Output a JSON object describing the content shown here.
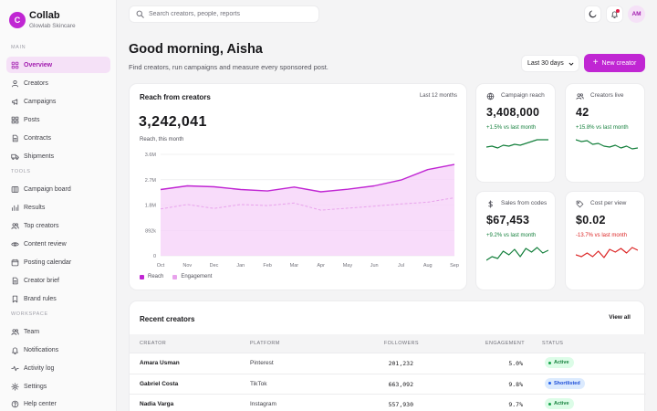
{
  "brand": {
    "initial": "C",
    "name": "Collab",
    "workspace": "Glowlab Skincare"
  },
  "search": {
    "placeholder": "Search creators, people, reports"
  },
  "user": {
    "initials": "AM"
  },
  "sidebar": {
    "sections": [
      {
        "label": "MAIN",
        "items": [
          {
            "label": "Overview",
            "icon": "grid-icon",
            "active": true
          },
          {
            "label": "Creators",
            "icon": "user-icon"
          },
          {
            "label": "Campaigns",
            "icon": "megaphone-icon"
          },
          {
            "label": "Posts",
            "icon": "posts-icon"
          },
          {
            "label": "Contracts",
            "icon": "document-icon"
          },
          {
            "label": "Shipments",
            "icon": "truck-icon"
          }
        ]
      },
      {
        "label": "TOOLS",
        "items": [
          {
            "label": "Campaign board",
            "icon": "board-icon"
          },
          {
            "label": "Results",
            "icon": "chart-icon"
          },
          {
            "label": "Top creators",
            "icon": "users-icon"
          },
          {
            "label": "Content review",
            "icon": "eye-icon"
          },
          {
            "label": "Posting calendar",
            "icon": "calendar-icon"
          },
          {
            "label": "Creator brief",
            "icon": "document-icon"
          },
          {
            "label": "Brand rules",
            "icon": "bookmark-icon"
          }
        ]
      },
      {
        "label": "WORKSPACE",
        "items": [
          {
            "label": "Team",
            "icon": "users-icon"
          },
          {
            "label": "Notifications",
            "icon": "bell-icon"
          },
          {
            "label": "Activity log",
            "icon": "pulse-icon"
          },
          {
            "label": "Settings",
            "icon": "gear-icon"
          },
          {
            "label": "Help center",
            "icon": "help-icon"
          }
        ]
      }
    ]
  },
  "header": {
    "greeting": "Good morning, Aisha",
    "subtitle": "Find creators, run campaigns and measure every sponsored post.",
    "range": "Last 30 days",
    "new_button": "New creator"
  },
  "reach_card": {
    "title": "Reach from creators",
    "period": "Last 12 months",
    "value": "3,242,041",
    "caption": "Reach, this month"
  },
  "chart_data": {
    "type": "area",
    "title": "Reach from creators",
    "categories": [
      "Oct",
      "Nov",
      "Dec",
      "Jan",
      "Feb",
      "Mar",
      "Apr",
      "May",
      "Jun",
      "Jul",
      "Aug",
      "Sep"
    ],
    "y_ticks": [
      "0",
      "892k",
      "1.8M",
      "2.7M",
      "3.6M"
    ],
    "ylim": [
      0,
      3600000
    ],
    "grid": true,
    "legend_position": "bottom-left",
    "series": [
      {
        "name": "Reach",
        "color": "#c026d3",
        "values": [
          2350000,
          2480000,
          2450000,
          2350000,
          2300000,
          2440000,
          2270000,
          2360000,
          2480000,
          2690000,
          3060000,
          3240000
        ]
      },
      {
        "name": "Engagement",
        "color": "#e8a3ec",
        "values": [
          1660000,
          1820000,
          1680000,
          1820000,
          1780000,
          1870000,
          1620000,
          1690000,
          1760000,
          1840000,
          1900000,
          2060000
        ]
      }
    ]
  },
  "stats": [
    {
      "label": "Campaign reach",
      "icon": "globe-icon",
      "value": "3,408,000",
      "delta": "+1.5% vs last month",
      "trend": "up",
      "spark": [
        16,
        17,
        15,
        18,
        17,
        19,
        18,
        20,
        22,
        24,
        24,
        24
      ]
    },
    {
      "label": "Creators live",
      "icon": "users-icon",
      "value": "42",
      "delta": "+15.8% vs last month",
      "trend": "up",
      "spark": [
        24,
        22,
        23,
        19,
        20,
        17,
        16,
        18,
        15,
        17,
        14,
        15
      ]
    },
    {
      "label": "Sales from codes",
      "icon": "dollar-icon",
      "value": "$67,453",
      "delta": "+9.2% vs last month",
      "trend": "up",
      "spark": [
        10,
        14,
        12,
        20,
        16,
        22,
        14,
        23,
        19,
        24,
        18,
        21
      ]
    },
    {
      "label": "Cost per view",
      "icon": "tag-icon",
      "value": "$0.02",
      "delta": "-13.7% vs last month",
      "trend": "down",
      "spark": [
        16,
        14,
        18,
        14,
        20,
        13,
        22,
        19,
        23,
        18,
        24,
        21
      ]
    }
  ],
  "colors": {
    "accent": "#c026d3",
    "positive": "#15803d",
    "negative": "#dc2626"
  },
  "recent": {
    "title": "Recent creators",
    "view_all": "View all",
    "columns": [
      "CREATOR",
      "PLATFORM",
      "FOLLOWERS",
      "ENGAGEMENT",
      "STATUS"
    ],
    "rows": [
      {
        "creator": "Amara Usman",
        "platform": "Pinterest",
        "followers": "201,232",
        "engagement": "5.0%",
        "status": "Active"
      },
      {
        "creator": "Gabriel Costa",
        "platform": "TikTok",
        "followers": "663,092",
        "engagement": "9.8%",
        "status": "Shortlisted"
      },
      {
        "creator": "Nadia Varga",
        "platform": "Instagram",
        "followers": "557,930",
        "engagement": "9.7%",
        "status": "Active"
      }
    ]
  }
}
